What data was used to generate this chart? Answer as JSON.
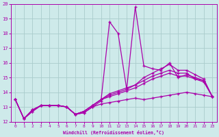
{
  "xlabel": "Windchill (Refroidissement éolien,°C)",
  "background_color": "#ceeaea",
  "line_color": "#aa00aa",
  "grid_color": "#aacccc",
  "xlim": [
    -0.5,
    23.5
  ],
  "ylim": [
    12,
    20
  ],
  "xticks": [
    0,
    1,
    2,
    3,
    4,
    5,
    6,
    7,
    8,
    9,
    10,
    11,
    12,
    13,
    14,
    15,
    16,
    17,
    18,
    19,
    20,
    21,
    22,
    23
  ],
  "yticks": [
    12,
    13,
    14,
    15,
    16,
    17,
    18,
    19,
    20
  ],
  "lines": [
    {
      "x": [
        0,
        1,
        2,
        3,
        4,
        5,
        6,
        7,
        8,
        9,
        10,
        11,
        12,
        13,
        14,
        15,
        16,
        17,
        18,
        19,
        20,
        21,
        22,
        23
      ],
      "y": [
        13.5,
        12.2,
        12.7,
        13.1,
        13.1,
        13.1,
        13.0,
        12.5,
        12.6,
        13.0,
        13.4,
        18.8,
        18.0,
        14.2,
        19.8,
        15.8,
        15.6,
        15.5,
        16.0,
        15.0,
        15.2,
        15.0,
        14.8,
        13.7
      ]
    },
    {
      "x": [
        0,
        1,
        2,
        3,
        4,
        5,
        6,
        7,
        8,
        9,
        10,
        11,
        12,
        13,
        14,
        15,
        16,
        17,
        18,
        19,
        20,
        21,
        22,
        23
      ],
      "y": [
        13.5,
        12.2,
        12.8,
        13.1,
        13.1,
        13.1,
        13.0,
        12.5,
        12.7,
        13.1,
        13.5,
        13.9,
        14.1,
        14.3,
        14.5,
        15.0,
        15.3,
        15.6,
        15.9,
        15.5,
        15.5,
        15.2,
        14.9,
        13.7
      ]
    },
    {
      "x": [
        0,
        1,
        2,
        3,
        4,
        5,
        6,
        7,
        8,
        9,
        10,
        11,
        12,
        13,
        14,
        15,
        16,
        17,
        18,
        19,
        20,
        21,
        22,
        23
      ],
      "y": [
        13.5,
        12.2,
        12.8,
        13.1,
        13.1,
        13.1,
        13.0,
        12.5,
        12.7,
        13.1,
        13.5,
        13.8,
        14.0,
        14.2,
        14.5,
        14.8,
        15.1,
        15.3,
        15.5,
        15.3,
        15.3,
        14.9,
        14.8,
        13.7
      ]
    },
    {
      "x": [
        0,
        1,
        2,
        3,
        4,
        5,
        6,
        7,
        8,
        9,
        10,
        11,
        12,
        13,
        14,
        15,
        16,
        17,
        18,
        19,
        20,
        21,
        22,
        23
      ],
      "y": [
        13.5,
        12.2,
        12.8,
        13.1,
        13.1,
        13.1,
        13.0,
        12.5,
        12.7,
        13.1,
        13.5,
        13.7,
        13.9,
        14.1,
        14.3,
        14.6,
        14.9,
        15.1,
        15.3,
        15.1,
        15.1,
        14.9,
        14.7,
        13.7
      ]
    },
    {
      "x": [
        0,
        1,
        2,
        3,
        4,
        5,
        6,
        7,
        8,
        9,
        10,
        11,
        12,
        13,
        14,
        15,
        16,
        17,
        18,
        19,
        20,
        21,
        22,
        23
      ],
      "y": [
        13.5,
        12.2,
        12.7,
        13.1,
        13.1,
        13.1,
        13.0,
        12.5,
        12.6,
        13.0,
        13.2,
        13.3,
        13.4,
        13.5,
        13.6,
        13.5,
        13.6,
        13.7,
        13.8,
        13.9,
        14.0,
        13.9,
        13.8,
        13.7
      ]
    }
  ]
}
